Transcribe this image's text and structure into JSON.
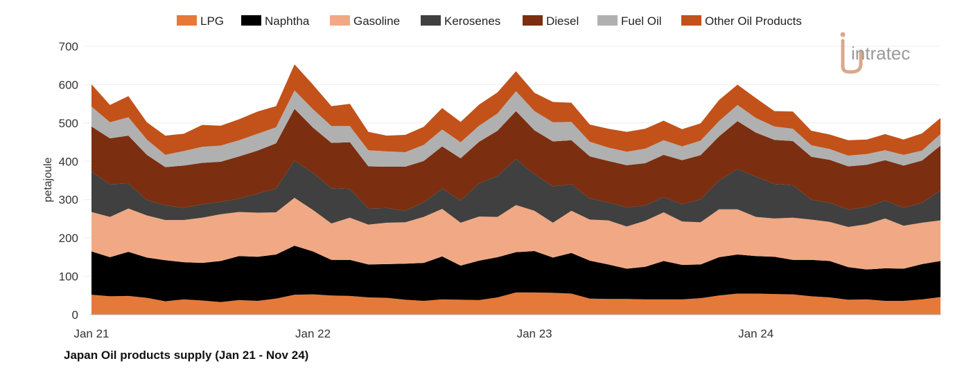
{
  "caption": "Japan Oil products supply (Jan 21 - Nov 24)",
  "logo": {
    "text": "intratec"
  },
  "chart_data": {
    "type": "area",
    "stacked": true,
    "ylabel": "petajoule",
    "ylim": [
      0,
      700
    ],
    "yticks": [
      0,
      100,
      200,
      300,
      400,
      500,
      600,
      700
    ],
    "xtick_labels": [
      {
        "label": "Jan 21",
        "index": 0
      },
      {
        "label": "Jan 22",
        "index": 12
      },
      {
        "label": "Jan 23",
        "index": 24
      },
      {
        "label": "Jan 24",
        "index": 36
      }
    ],
    "x": [
      "2021-01",
      "2021-02",
      "2021-03",
      "2021-04",
      "2021-05",
      "2021-06",
      "2021-07",
      "2021-08",
      "2021-09",
      "2021-10",
      "2021-11",
      "2021-12",
      "2022-01",
      "2022-02",
      "2022-03",
      "2022-04",
      "2022-05",
      "2022-06",
      "2022-07",
      "2022-08",
      "2022-09",
      "2022-10",
      "2022-11",
      "2022-12",
      "2023-01",
      "2023-02",
      "2023-03",
      "2023-04",
      "2023-05",
      "2023-06",
      "2023-07",
      "2023-08",
      "2023-09",
      "2023-10",
      "2023-11",
      "2023-12",
      "2024-01",
      "2024-02",
      "2024-03",
      "2024-04",
      "2024-05",
      "2024-06",
      "2024-07",
      "2024-08",
      "2024-09",
      "2024-10",
      "2024-11"
    ],
    "legend_position": "top-center",
    "series": [
      {
        "name": "LPG",
        "color": "#e5793a",
        "values": [
          52,
          48,
          49,
          44,
          35,
          40,
          37,
          33,
          38,
          36,
          42,
          52,
          53,
          50,
          49,
          45,
          44,
          39,
          36,
          40,
          39,
          38,
          45,
          58,
          58,
          57,
          55,
          42,
          41,
          41,
          40,
          40,
          40,
          43,
          50,
          55,
          55,
          54,
          53,
          48,
          45,
          39,
          40,
          36,
          36,
          40,
          46
        ]
      },
      {
        "name": "Naphtha",
        "color": "#000000",
        "values": [
          113,
          102,
          115,
          105,
          107,
          97,
          98,
          107,
          115,
          115,
          115,
          128,
          112,
          93,
          94,
          86,
          88,
          94,
          99,
          112,
          89,
          103,
          105,
          105,
          108,
          92,
          106,
          99,
          90,
          79,
          85,
          100,
          90,
          88,
          100,
          102,
          98,
          97,
          90,
          95,
          95,
          85,
          78,
          85,
          84,
          92,
          94
        ]
      },
      {
        "name": "Gasoline",
        "color": "#f0a984",
        "values": [
          103,
          105,
          113,
          110,
          105,
          110,
          118,
          122,
          115,
          115,
          110,
          125,
          108,
          95,
          110,
          104,
          108,
          108,
          120,
          124,
          112,
          115,
          105,
          123,
          105,
          91,
          110,
          107,
          115,
          110,
          120,
          127,
          113,
          110,
          125,
          118,
          102,
          100,
          110,
          105,
          102,
          105,
          118,
          130,
          112,
          108,
          106
        ]
      },
      {
        "name": "Kerosenes",
        "color": "#404040",
        "values": [
          105,
          85,
          65,
          40,
          38,
          32,
          35,
          32,
          35,
          50,
          62,
          97,
          97,
          92,
          75,
          42,
          38,
          30,
          38,
          53,
          58,
          87,
          107,
          120,
          95,
          95,
          69,
          55,
          47,
          50,
          40,
          40,
          45,
          60,
          75,
          105,
          105,
          90,
          85,
          52,
          50,
          45,
          45,
          47,
          47,
          52,
          78
        ]
      },
      {
        "name": "Diesel",
        "color": "#7b2f10",
        "values": [
          118,
          120,
          125,
          118,
          100,
          110,
          108,
          105,
          110,
          112,
          118,
          135,
          118,
          118,
          122,
          110,
          108,
          115,
          108,
          110,
          110,
          108,
          118,
          125,
          115,
          117,
          115,
          110,
          108,
          110,
          110,
          110,
          115,
          115,
          115,
          125,
          115,
          115,
          115,
          112,
          112,
          113,
          110,
          105,
          110,
          110,
          117
        ]
      },
      {
        "name": "Fuel Oil",
        "color": "#b0b0b0",
        "values": [
          52,
          42,
          48,
          40,
          32,
          38,
          42,
          42,
          42,
          44,
          42,
          48,
          48,
          44,
          42,
          42,
          40,
          38,
          42,
          44,
          42,
          42,
          45,
          52,
          50,
          50,
          48,
          38,
          35,
          35,
          38,
          38,
          36,
          38,
          40,
          42,
          38,
          35,
          32,
          30,
          28,
          28,
          28,
          26,
          28,
          26,
          30
        ]
      },
      {
        "name": "Other Oil Products",
        "color": "#c2521a",
        "values": [
          58,
          45,
          55,
          45,
          50,
          45,
          57,
          52,
          55,
          58,
          55,
          68,
          64,
          52,
          58,
          48,
          41,
          45,
          47,
          56,
          53,
          55,
          55,
          52,
          48,
          53,
          50,
          45,
          49,
          52,
          52,
          51,
          45,
          45,
          55,
          53,
          52,
          40,
          45,
          38,
          38,
          40,
          38,
          42,
          40,
          45,
          42
        ]
      }
    ]
  }
}
